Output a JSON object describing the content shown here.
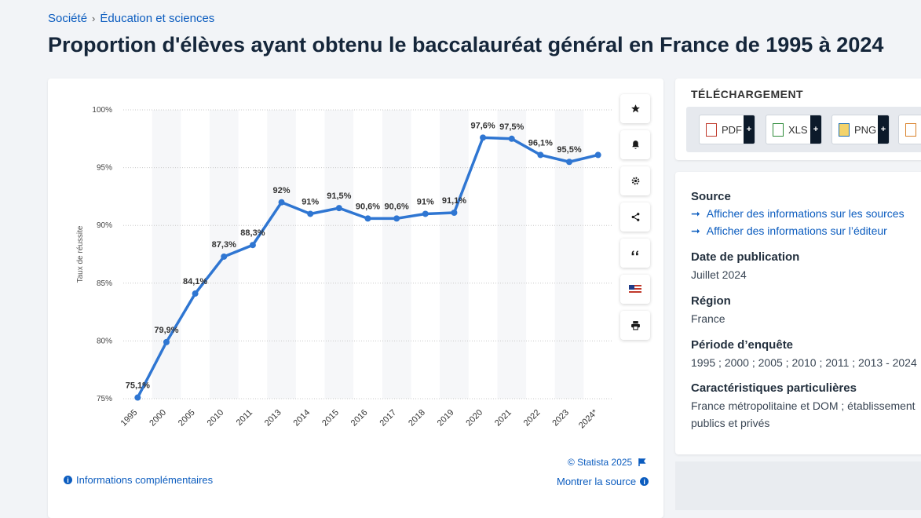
{
  "breadcrumb": {
    "item1": "Société",
    "sep": "›",
    "item2": "Éducation et sciences"
  },
  "page_title": "Proportion d'élèves ayant obtenu le baccalauréat général en France de 1995 à 2024",
  "toolbar": {
    "icons": [
      "star-icon",
      "bell-icon",
      "gear-icon",
      "share-icon",
      "quote-icon",
      "flag-icon",
      "print-icon"
    ]
  },
  "credit": "© Statista 2025",
  "info_more": "Informations complémentaires",
  "show_source": "Montrer la source",
  "download": {
    "title": "TÉLÉCHARGEMENT",
    "buttons": [
      {
        "label": "PDF"
      },
      {
        "label": "XLS"
      },
      {
        "label": "PNG"
      },
      {
        "label": ""
      }
    ],
    "plus": "+"
  },
  "meta": {
    "source_heading": "Source",
    "source_link1": "Afficher des informations sur les sources",
    "source_link2": "Afficher des informations sur l’éditeur",
    "date_heading": "Date de publication",
    "date_value": "Juillet 2024",
    "region_heading": "Région",
    "region_value": "France",
    "period_heading": "Période d’enquête",
    "period_value": "1995 ; 2000 ; 2005 ; 2010 ; 2011 ; 2013 - 2024",
    "features_heading": "Caractéristiques particulières",
    "features_line1": "France métropolitaine et DOM ; établissement",
    "features_line2": "publics et privés"
  },
  "colors": {
    "line": "#2f76d2",
    "link": "#0b5cbf",
    "band": "#f6f7f9",
    "grid": "#c8c8c8"
  },
  "chart_data": {
    "type": "line",
    "ylabel": "Taux de réussite",
    "xlabel": "",
    "ylim": [
      75,
      100
    ],
    "yticks": [
      100,
      95,
      90,
      85,
      80,
      75
    ],
    "ytick_labels": [
      "100%",
      "95%",
      "90%",
      "85%",
      "80%",
      "75%"
    ],
    "categories": [
      "1995",
      "2000",
      "2005",
      "2010",
      "2011",
      "2013",
      "2014",
      "2015",
      "2016",
      "2017",
      "2018",
      "2019",
      "2020",
      "2021",
      "2022",
      "2023",
      "2024*"
    ],
    "values": [
      75.1,
      79.9,
      84.1,
      87.3,
      88.3,
      92,
      91,
      91.5,
      90.6,
      90.6,
      91,
      91.1,
      97.6,
      97.5,
      96.1,
      95.5,
      96.1
    ],
    "data_labels": [
      "75,1%",
      "79,9%",
      "84,1%",
      "87,3%",
      "88,3%",
      "92%",
      "91%",
      "91,5%",
      "90,6%",
      "90,6%",
      "91%",
      "91,1%",
      "97,6%",
      "97,5%",
      "96,1%",
      "95,5%",
      ""
    ],
    "grid": true,
    "legend": "none"
  }
}
